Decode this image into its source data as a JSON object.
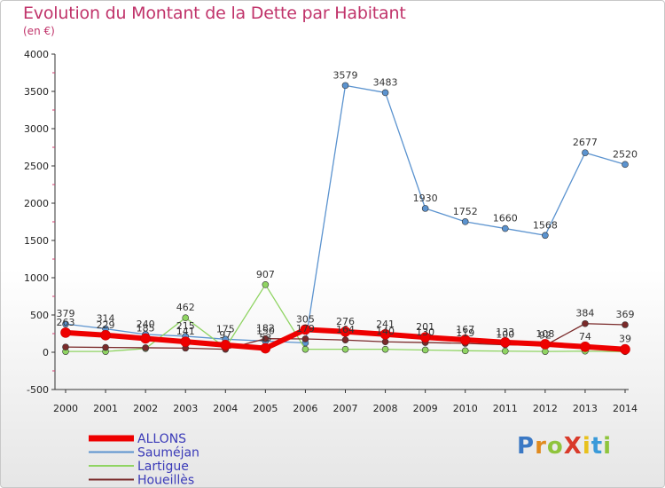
{
  "title": "Evolution du Montant de la Dette par Habitant",
  "unit": "(en €)",
  "logo": {
    "text": "ProXiti",
    "colors": [
      "#3a78c4",
      "#e08a1e",
      "#8fc43c",
      "#d93a2a",
      "#e8c11c",
      "#3a9ad9",
      "#8fc43c"
    ]
  },
  "chart_data": {
    "type": "line",
    "x": [
      2000,
      2001,
      2002,
      2003,
      2004,
      2005,
      2006,
      2007,
      2008,
      2009,
      2010,
      2011,
      2012,
      2013,
      2014
    ],
    "ylim": [
      -500,
      4000
    ],
    "yticks": [
      -500,
      0,
      500,
      1000,
      1500,
      2000,
      2500,
      3000,
      3500,
      4000
    ],
    "grid": false,
    "legend_position": "bottom-left",
    "series": [
      {
        "name": "ALLONS",
        "color": "#ee0000",
        "values": [
          263,
          229,
          185,
          141,
          97,
          53,
          305,
          276,
          241,
          201,
          167,
          133,
          108,
          74,
          39
        ]
      },
      {
        "name": "Sauméjan",
        "color": "#5b93cf",
        "values": [
          379,
          314,
          240,
          215,
          175,
          150,
          125,
          3579,
          3483,
          1930,
          1752,
          1660,
          1568,
          2677,
          2520
        ]
      },
      {
        "name": "Lartigue",
        "color": "#8fd462",
        "values": [
          10,
          10,
          50,
          462,
          60,
          907,
          40,
          40,
          40,
          30,
          20,
          15,
          10,
          15,
          8
        ]
      },
      {
        "name": "Houeillès",
        "color": "#7a2a2a",
        "values": [
          70,
          65,
          60,
          55,
          40,
          182,
          179,
          164,
          140,
          130,
          119,
          100,
          92,
          384,
          369
        ]
      }
    ],
    "data_labels": {
      "ALLONS": [
        "263",
        "229",
        "185",
        "141",
        "97",
        "53",
        "305",
        "276",
        "241",
        "201",
        "167",
        "133",
        "108",
        "74",
        "39"
      ],
      "Sauméjan": [
        "379",
        "314",
        "240",
        "215",
        "175",
        "150",
        "",
        "3579",
        "3483",
        "1930",
        "1752",
        "1660",
        "1568",
        "2677",
        "2520"
      ],
      "Lartigue": [
        "",
        "",
        "",
        "462",
        "",
        "907",
        "",
        "",
        "",
        "",
        "",
        "",
        "",
        "",
        ""
      ],
      "Houeillès": [
        "",
        "",
        "",
        "",
        "",
        "182",
        "179",
        "164",
        "140",
        "130",
        "119",
        "100",
        "92",
        "384",
        "369"
      ]
    }
  }
}
